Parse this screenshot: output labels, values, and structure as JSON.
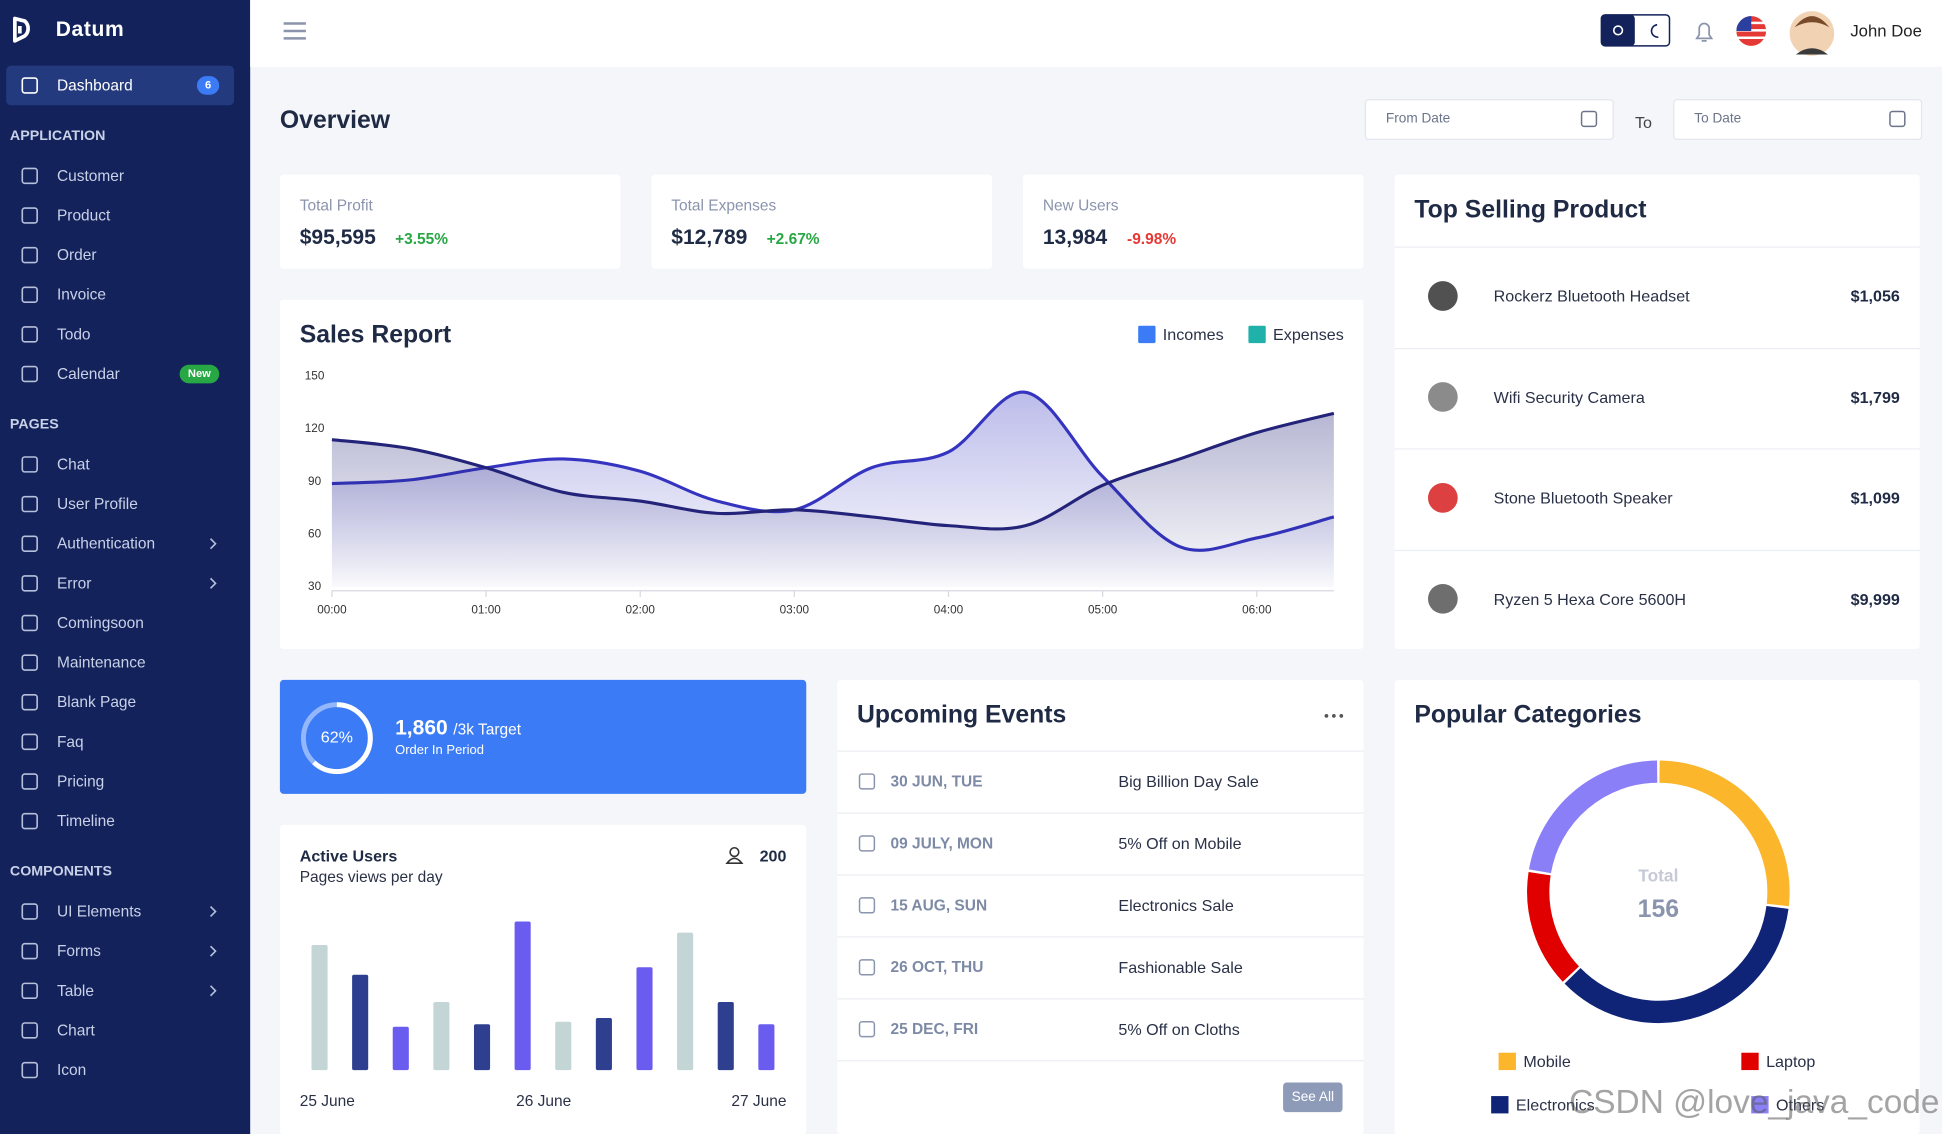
{
  "sidebar": {
    "brand": "Datum",
    "menu": [
      {
        "items": [
          {
            "label": "Dashboard",
            "badge": "6",
            "badge_color": "#3b7cf6",
            "active": true
          }
        ]
      },
      {
        "title": "APPLICATION",
        "items": [
          {
            "label": "Customer"
          },
          {
            "label": "Product"
          },
          {
            "label": "Order"
          },
          {
            "label": "Invoice"
          },
          {
            "label": "Todo"
          },
          {
            "label": "Calendar",
            "badge": "New",
            "badge_color": "#28a745"
          }
        ]
      },
      {
        "title": "PAGES",
        "items": [
          {
            "label": "Chat"
          },
          {
            "label": "User Profile"
          },
          {
            "label": "Authentication",
            "arrow": true
          },
          {
            "label": "Error",
            "arrow": true
          },
          {
            "label": "Comingsoon"
          },
          {
            "label": "Maintenance"
          },
          {
            "label": "Blank Page"
          },
          {
            "label": "Faq"
          },
          {
            "label": "Pricing"
          },
          {
            "label": "Timeline"
          }
        ]
      },
      {
        "title": "COMPONENTS",
        "items": [
          {
            "label": "UI Elements",
            "arrow": true
          },
          {
            "label": "Forms",
            "arrow": true
          },
          {
            "label": "Table",
            "arrow": true
          },
          {
            "label": "Chart"
          },
          {
            "label": "Icon"
          }
        ]
      }
    ]
  },
  "header": {
    "user": "John Doe"
  },
  "overview": {
    "title": "Overview",
    "from_date": "From Date",
    "to": "To",
    "to_date": "To Date"
  },
  "stats": [
    {
      "label": "Total Profit",
      "value": "$95,595",
      "change": "+3.55%",
      "color": "#28a745"
    },
    {
      "label": "Total Expenses",
      "value": "$12,789",
      "change": "+2.67%",
      "color": "#28a745"
    },
    {
      "label": "New Users",
      "value": "13,984",
      "change": "-9.98%",
      "color": "#e53935"
    }
  ],
  "top_selling": {
    "title": "Top Selling Product",
    "products": [
      {
        "name": "Rockerz Bluetooth Headset",
        "price": "$1,056"
      },
      {
        "name": "Wifi Security Camera",
        "price": "$1,799"
      },
      {
        "name": "Stone Bluetooth Speaker",
        "price": "$1,099"
      },
      {
        "name": "Ryzen 5 Hexa Core 5600H",
        "price": "$9,999"
      }
    ]
  },
  "target": {
    "percent": 62,
    "percent_label": "62%",
    "value": "1,860",
    "target": "/3k Target",
    "caption": "Order In Period"
  },
  "events": {
    "title": "Upcoming Events",
    "button": "See All",
    "items": [
      {
        "date": "30 JUN, TUE",
        "name": "Big Billion Day Sale"
      },
      {
        "date": "09 JULY, MON",
        "name": "5% Off on Mobile"
      },
      {
        "date": "15 AUG, SUN",
        "name": "Electronics Sale"
      },
      {
        "date": "26 OCT, THU",
        "name": "Fashionable Sale"
      },
      {
        "date": "25 DEC, FRI",
        "name": "5% Off on Cloths"
      }
    ]
  },
  "watermark": "CSDN @love_java_code",
  "chart_data": [
    {
      "type": "line",
      "title": "Sales Report",
      "x": [
        0,
        0.5,
        1,
        1.5,
        2,
        2.5,
        3,
        3.5,
        4,
        4.5,
        5,
        5.5,
        6,
        6.5
      ],
      "xlim": [
        0,
        6.5
      ],
      "xticks": [
        {
          "value": 0,
          "label": "00:00"
        },
        {
          "value": 1,
          "label": "01:00"
        },
        {
          "value": 2,
          "label": "02:00"
        },
        {
          "value": 3,
          "label": "03:00"
        },
        {
          "value": 4,
          "label": "04:00"
        },
        {
          "value": 5,
          "label": "05:00"
        },
        {
          "value": 6,
          "label": "06:00"
        }
      ],
      "ylim": [
        30,
        150
      ],
      "yticks": [
        30,
        60,
        90,
        120,
        150
      ],
      "series": [
        {
          "name": "Incomes",
          "color": "#3b7cf6",
          "line_color": "#3434c0",
          "values": [
            89,
            91,
            98,
            103,
            96,
            79,
            74,
            98,
            107,
            141,
            93,
            53,
            58,
            70
          ]
        },
        {
          "name": "Expenses",
          "color": "#20b2aa",
          "line_color": "#23237a",
          "values": [
            114,
            109,
            98,
            84,
            79,
            72,
            74,
            70,
            65,
            65,
            88,
            103,
            118,
            129
          ]
        }
      ]
    },
    {
      "type": "bar",
      "title": "Active Users",
      "subtitle": "Pages views per day",
      "total": "200",
      "xlabels": [
        "25 June",
        "26 June",
        "27 June"
      ],
      "values": [
        101,
        77,
        35,
        55,
        37,
        120,
        39,
        42,
        83,
        111,
        55,
        37
      ],
      "colors": [
        "#c3d5d5",
        "#2e3f8f",
        "#6b5cf0",
        "#c3d5d5",
        "#2e3f8f",
        "#6b5cf0",
        "#c3d5d5",
        "#2e3f8f",
        "#6b5cf0",
        "#c3d5d5",
        "#2e3f8f",
        "#6b5cf0"
      ],
      "ylim": [
        0,
        125
      ]
    },
    {
      "type": "donut",
      "title": "Popular Categories",
      "center_label": "Total",
      "total": "156",
      "series": [
        {
          "name": "Mobile",
          "color": "#fbb62c",
          "value": 42
        },
        {
          "name": "Electronics",
          "color": "#0f2377",
          "value": 56
        },
        {
          "name": "Laptop",
          "color": "#e00000",
          "value": 23
        },
        {
          "name": "Others",
          "color": "#8b7ff7",
          "value": 35
        }
      ]
    }
  ]
}
